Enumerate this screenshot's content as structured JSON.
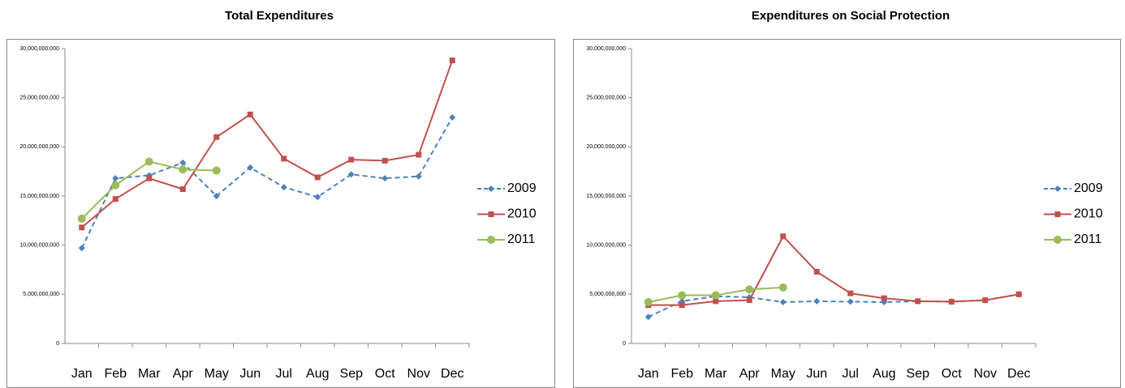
{
  "chart_data": [
    {
      "type": "line",
      "title": "Total Expenditures",
      "categories": [
        "Jan",
        "Feb",
        "Mar",
        "Apr",
        "May",
        "Jun",
        "Jul",
        "Aug",
        "Sep",
        "Oct",
        "Nov",
        "Dec"
      ],
      "ylim": [
        0,
        30000000000
      ],
      "yticks": [
        0,
        {
          "value": 5000000000,
          "label": "5,000,000,000"
        },
        {
          "value": 10000000000,
          "label": "10,000,000,000"
        },
        {
          "value": 15000000000,
          "label": "15,000,000,000"
        },
        {
          "value": 20000000000,
          "label": "20,000,000,000"
        },
        {
          "value": 25000000000,
          "label": "25,000,000,000"
        },
        {
          "value": 30000000000,
          "label": "30,000,000,000"
        }
      ],
      "grid": false,
      "legend": "right",
      "series": [
        {
          "name": "2009",
          "color": "#4f81bd",
          "marker": "diamond",
          "line_style": "dashed",
          "values": [
            9700000000,
            16800000000,
            17100000000,
            18400000000,
            15000000000,
            17900000000,
            15900000000,
            14900000000,
            17200000000,
            16800000000,
            17000000000,
            23000000000
          ]
        },
        {
          "name": "2010",
          "color": "#c0504d",
          "marker": "square",
          "line_style": "solid",
          "values": [
            11800000000,
            14700000000,
            16800000000,
            15700000000,
            21000000000,
            23300000000,
            18800000000,
            16900000000,
            18700000000,
            18600000000,
            19200000000,
            28800000000
          ]
        },
        {
          "name": "2011",
          "color": "#9bbb59",
          "marker": "circle",
          "line_style": "solid",
          "values": [
            12700000000,
            16100000000,
            18500000000,
            17700000000,
            17600000000,
            null,
            null,
            null,
            null,
            null,
            null,
            null
          ]
        }
      ]
    },
    {
      "type": "line",
      "title": "Expenditures on Social Protection",
      "categories": [
        "Jan",
        "Feb",
        "Mar",
        "Apr",
        "May",
        "Jun",
        "Jul",
        "Aug",
        "Sep",
        "Oct",
        "Nov",
        "Dec"
      ],
      "ylim": [
        0,
        30000000000
      ],
      "yticks": [
        0,
        {
          "value": 5000000000,
          "label": "5,000,000,000"
        },
        {
          "value": 10000000000,
          "label": "10,000,000,000"
        },
        {
          "value": 15000000000,
          "label": "15,000,000,000"
        },
        {
          "value": 20000000000,
          "label": "20,000,000,000"
        },
        {
          "value": 25000000000,
          "label": "25,000,000,000"
        },
        {
          "value": 30000000000,
          "label": "30,000,000,000"
        }
      ],
      "grid": false,
      "legend": "right",
      "series": [
        {
          "name": "2009",
          "color": "#4f81bd",
          "marker": "diamond",
          "line_style": "dashed",
          "values": [
            2700000000,
            4300000000,
            4800000000,
            4700000000,
            4200000000,
            4300000000,
            4250000000,
            4200000000,
            4300000000,
            4250000000,
            4400000000,
            5000000000
          ]
        },
        {
          "name": "2010",
          "color": "#c0504d",
          "marker": "square",
          "line_style": "solid",
          "values": [
            3900000000,
            3900000000,
            4300000000,
            4400000000,
            10900000000,
            7300000000,
            5100000000,
            4600000000,
            4300000000,
            4250000000,
            4400000000,
            5000000000
          ]
        },
        {
          "name": "2011",
          "color": "#9bbb59",
          "marker": "circle",
          "line_style": "solid",
          "values": [
            4200000000,
            4900000000,
            4900000000,
            5500000000,
            5700000000,
            null,
            null,
            null,
            null,
            null,
            null,
            null
          ]
        }
      ]
    }
  ]
}
